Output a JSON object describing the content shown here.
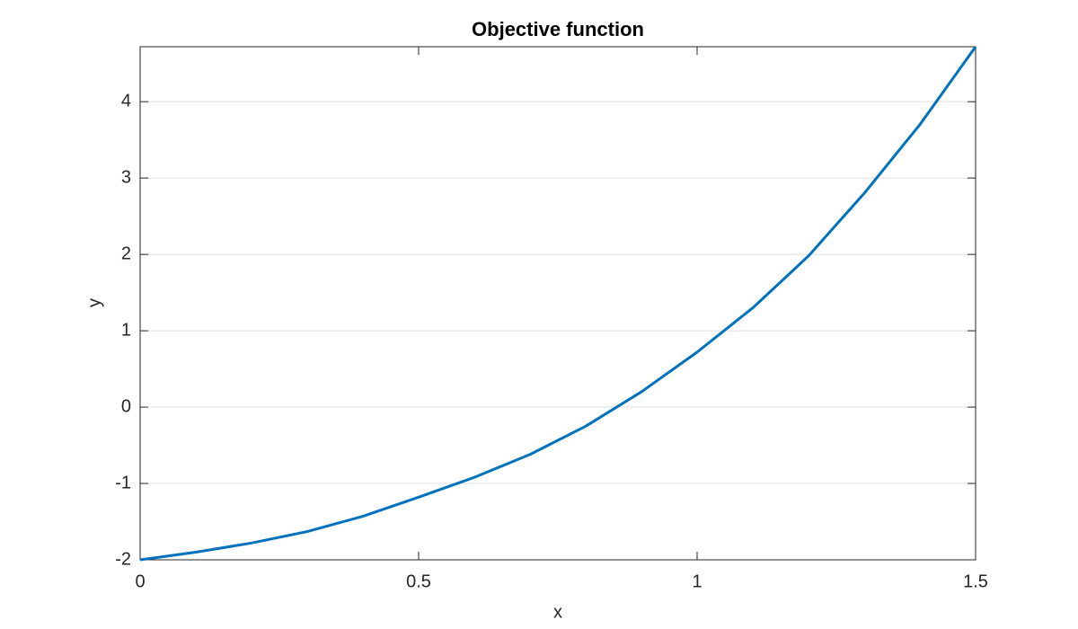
{
  "chart_data": {
    "type": "line",
    "title": "Objective function",
    "xlabel": "x",
    "ylabel": "y",
    "x": [
      0,
      0.1,
      0.2,
      0.3,
      0.4,
      0.5,
      0.6,
      0.7,
      0.8,
      0.9,
      1.0,
      1.1,
      1.2,
      1.3,
      1.4,
      1.5
    ],
    "series": [
      {
        "color": "#0072bd",
        "values": [
          -2,
          -1.9,
          -1.78,
          -1.63,
          -1.43,
          -1.18,
          -0.92,
          -0.62,
          -0.25,
          0.2,
          0.72,
          1.3,
          1.98,
          2.8,
          3.7,
          4.72
        ]
      }
    ],
    "xlim": [
      0,
      1.5
    ],
    "ylim": [
      -2,
      4.72
    ],
    "xticks": [
      0,
      0.5,
      1,
      1.5
    ],
    "yticks": [
      -2,
      -1,
      0,
      1,
      2,
      3,
      4
    ],
    "grid": "y"
  }
}
